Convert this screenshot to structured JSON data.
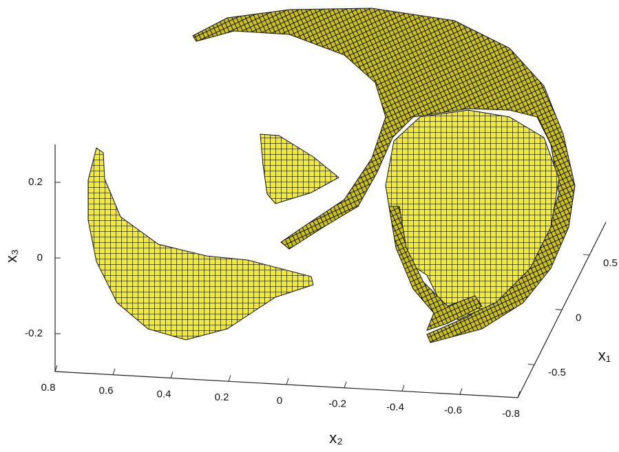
{
  "chart_data": {
    "type": "voxel3d",
    "xlabel": "x₂",
    "ylabel": "x₁",
    "zlabel": "x₃",
    "xlim": [
      0.8,
      -0.8
    ],
    "xticks": [
      0.8,
      0.6,
      0.4,
      0.2,
      0,
      -0.2,
      -0.4,
      -0.6,
      -0.8
    ],
    "ylim": [
      -0.8,
      0.8
    ],
    "yticks": [
      -0.5,
      0,
      0.5
    ],
    "zlim": [
      -0.3,
      0.3
    ],
    "zticks": [
      -0.2,
      0,
      0.2
    ],
    "color": "#f2ea2e"
  }
}
